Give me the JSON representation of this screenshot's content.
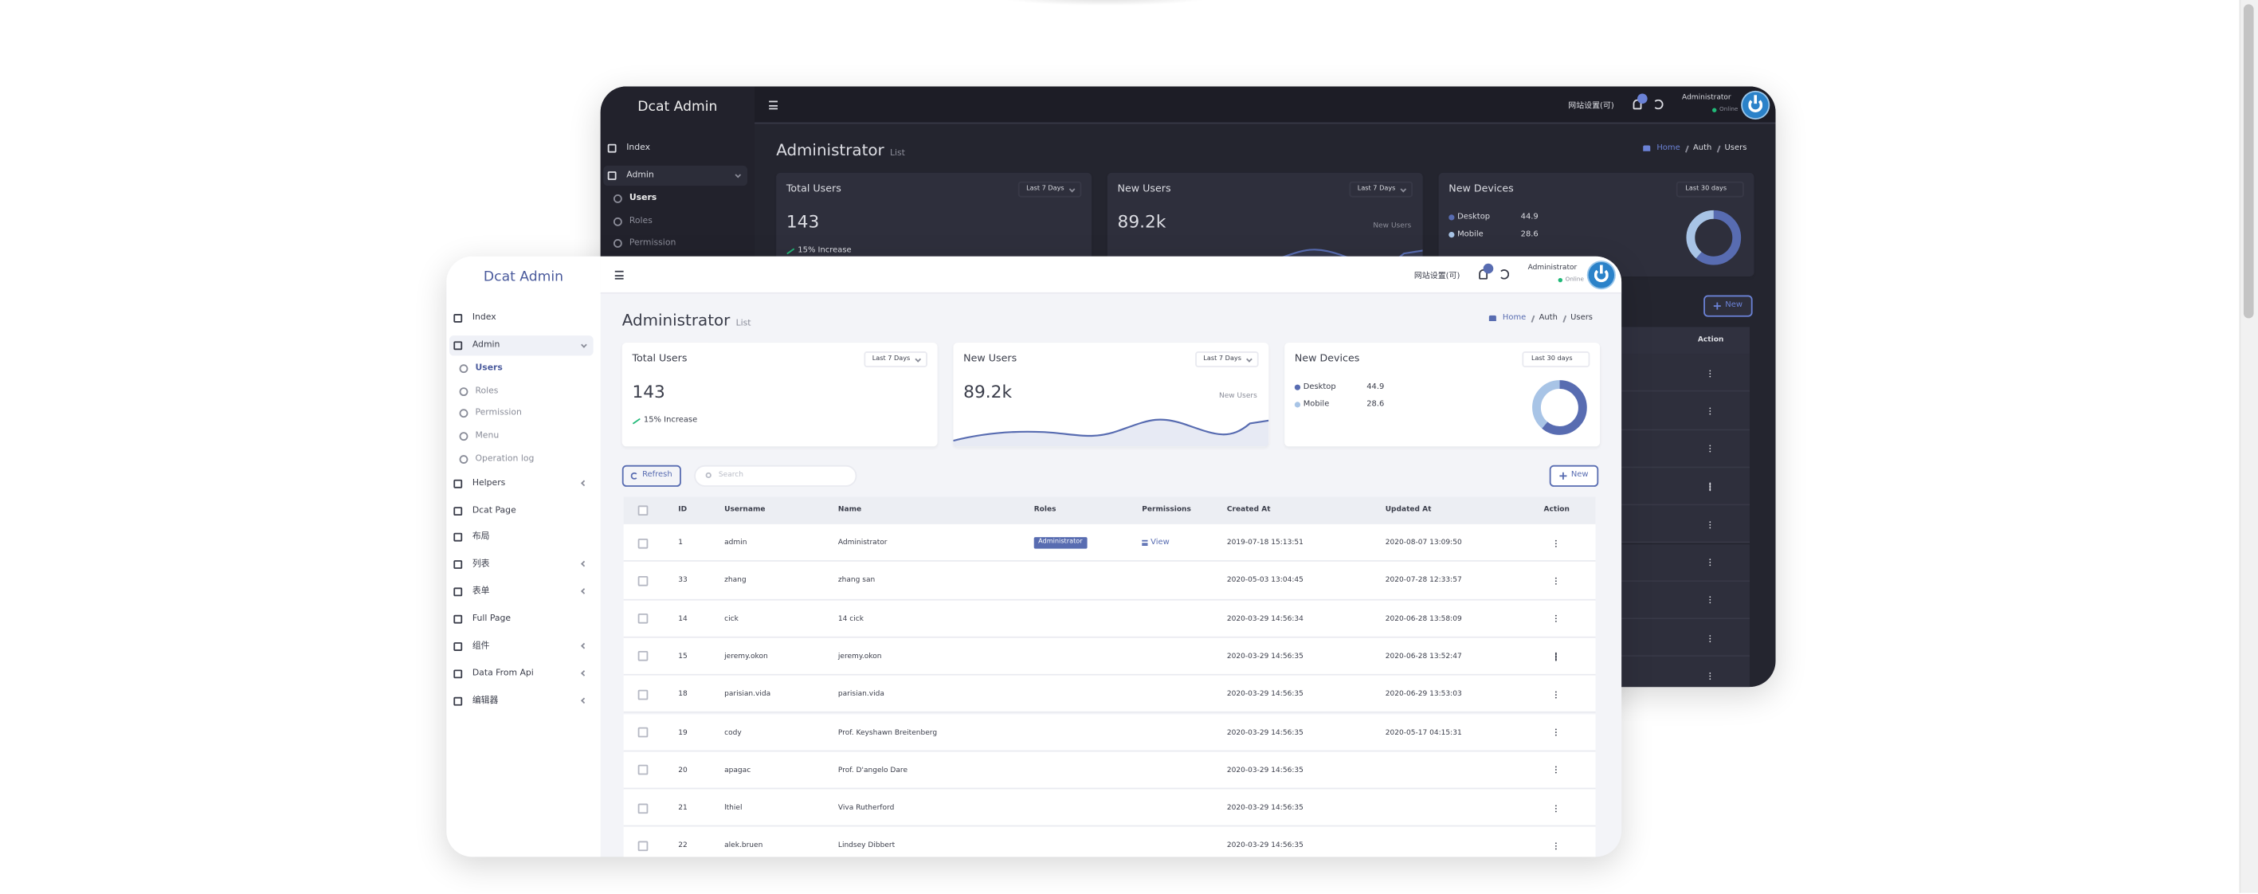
{
  "app": {
    "brand": "Dcat Admin",
    "menu": [
      "Index",
      "Admin",
      "Users",
      "Roles",
      "Permission",
      "Menu",
      "Operation log",
      "Helpers",
      "Dcat Page",
      "布局",
      "列表",
      "表单",
      "Full Page",
      "组件",
      "Data From Api",
      "编辑器"
    ],
    "header": {
      "site_settings": "网站设置(可)",
      "user": "Administrator",
      "status": "Online"
    },
    "title": "Administrator",
    "subtitle": "List",
    "breadcrumb": [
      "Home",
      "Auth",
      "Users"
    ],
    "cards": [
      {
        "title": "Total Users",
        "filter": "Last 7 Days",
        "value": "143",
        "note": "15% Increase"
      },
      {
        "title": "New Users",
        "filter": "Last 7 Days",
        "value": "89.2k",
        "note": "New Users"
      },
      {
        "title": "New Devices",
        "filter": "Last 30 days",
        "legend": [
          {
            "name": "Desktop",
            "value": 44.9
          },
          {
            "name": "Mobile",
            "value": 28.6
          }
        ]
      }
    ],
    "toolbar": {
      "refresh": "Refresh",
      "search": "Search",
      "new": "New"
    },
    "table": {
      "columns": [
        "ID",
        "Username",
        "Name",
        "Roles",
        "Permissions",
        "Created At",
        "Updated At",
        "Action"
      ],
      "rows": [
        {
          "id": "1",
          "username": "admin",
          "name": "Administrator",
          "role": "Administrator",
          "permission": "View",
          "created_at": "2019-07-18 15:13:51",
          "updated_at": "2020-08-07 13:09:50"
        },
        {
          "id": "33",
          "username": "zhang",
          "name": "zhang san",
          "created_at": "2020-05-03 13:04:45",
          "updated_at": "2020-07-28 12:33:57"
        },
        {
          "id": "14",
          "username": "cick",
          "name": "14 cick",
          "created_at": "2020-03-29 14:56:34",
          "updated_at": "2020-06-28 13:58:09"
        },
        {
          "id": "15",
          "username": "jeremy.okon",
          "name": "jeremy.okon",
          "created_at": "2020-03-29 14:56:35",
          "updated_at": "2020-06-28 13:52:47"
        },
        {
          "id": "18",
          "username": "parisian.vida",
          "name": "parisian.vida",
          "created_at": "2020-03-29 14:56:35",
          "updated_at": "2020-06-29 13:53:03"
        },
        {
          "id": "19",
          "username": "cody",
          "name": "Prof. Keyshawn Breitenberg",
          "created_at": "2020-03-29 14:56:35",
          "updated_at": "2020-05-17 04:15:31"
        },
        {
          "id": "20",
          "username": "apagac",
          "name": "Prof. D'angelo Dare",
          "created_at": "2020-03-29 14:56:35"
        },
        {
          "id": "21",
          "username": "lthiel",
          "name": "Viva Rutherford",
          "created_at": "2020-03-29 14:56:35"
        },
        {
          "id": "22",
          "username": "alek.bruen",
          "name": "Lindsey Dibbert",
          "created_at": "2020-03-29 14:56:35"
        }
      ]
    }
  }
}
